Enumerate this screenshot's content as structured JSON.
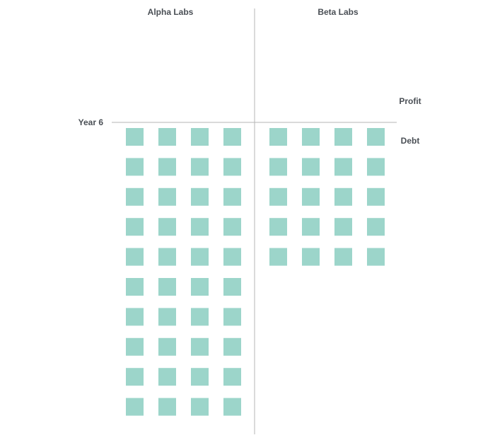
{
  "chart_data": {
    "type": "pictogram",
    "title": "",
    "row_label": "Year 6",
    "positive_label": "Profit",
    "negative_label": "Debt",
    "categories": [
      "Alpha Labs",
      "Beta Labs"
    ],
    "series": [
      {
        "category": "Alpha Labs",
        "profit_units": 0,
        "debt_units": 40
      },
      {
        "category": "Beta Labs",
        "profit_units": 0,
        "debt_units": 20
      }
    ],
    "units_per_row": 4,
    "colors": {
      "unit": "#9cd5ca",
      "axis": "#b5b5b5",
      "text": "#4a4f55"
    }
  }
}
